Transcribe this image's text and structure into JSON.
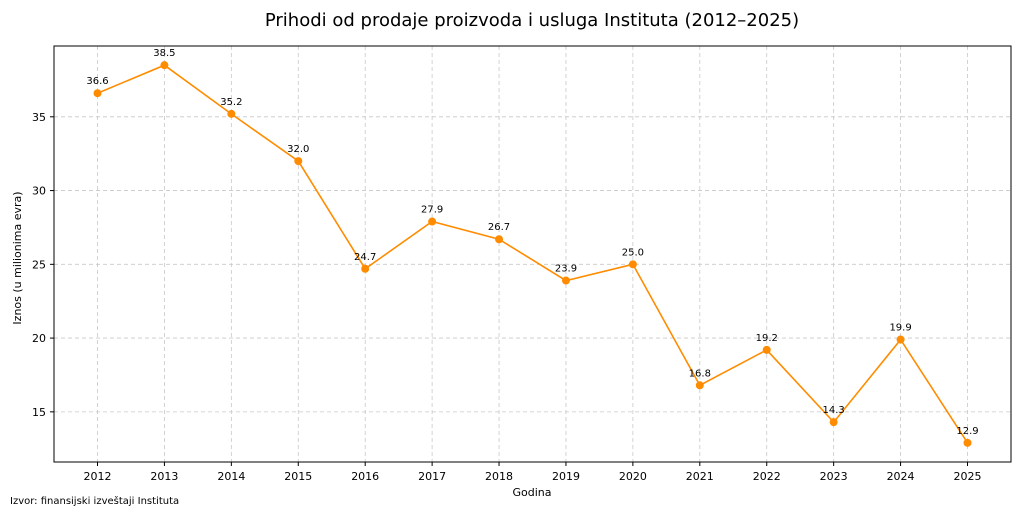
{
  "chart_data": {
    "type": "line",
    "title": "Prihodi od prodaje proizvoda i usluga Instituta (2012–2025)",
    "xlabel": "Godina",
    "ylabel": "Iznos (u milionima evra)",
    "x": [
      2012,
      2013,
      2014,
      2015,
      2016,
      2017,
      2018,
      2019,
      2020,
      2021,
      2022,
      2023,
      2024,
      2025
    ],
    "series": [
      {
        "name": "Prihodi",
        "values": [
          36.6,
          38.5,
          35.2,
          32.0,
          24.7,
          27.9,
          26.7,
          23.9,
          25.0,
          16.8,
          19.2,
          14.3,
          19.9,
          12.9
        ],
        "value_labels": [
          "36.6",
          "38.5",
          "35.2",
          "32.0",
          "24.7",
          "27.9",
          "26.7",
          "23.9",
          "25.0",
          "16.8",
          "19.2",
          "14.3",
          "19.9",
          "12.9"
        ]
      }
    ],
    "yticks": [
      15,
      20,
      25,
      30,
      35
    ],
    "ylim": [
      11.6,
      39.8
    ],
    "xlim": [
      2011.35,
      2025.65
    ],
    "grid": true,
    "line_color": "#ff8c00",
    "grid_color": "#c8c8c8"
  },
  "source_note": "Izvor: finansijski izveštaji Instituta"
}
